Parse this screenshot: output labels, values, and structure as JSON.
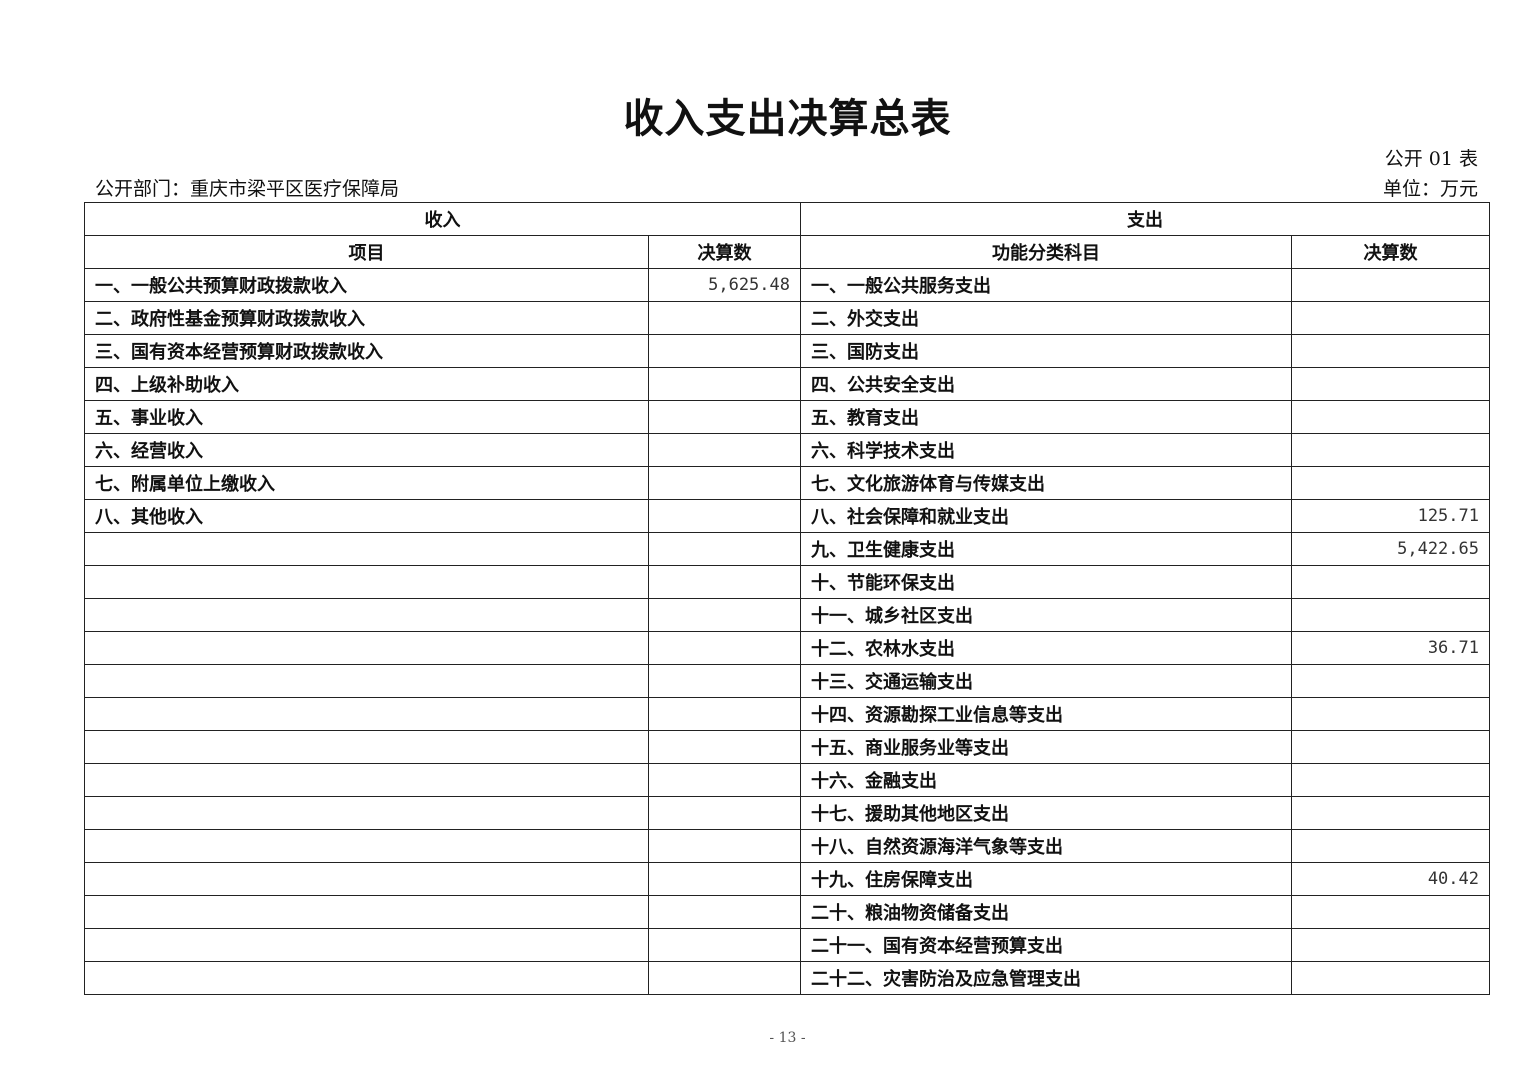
{
  "title": "收入支出决算总表",
  "form_no": "公开 01 表",
  "department": "公开部门：重庆市梁平区医疗保障局",
  "unit": "单位：万元",
  "headers": {
    "income": "收入",
    "expense": "支出",
    "income_item": "项目",
    "income_amount": "决算数",
    "expense_item": "功能分类科目",
    "expense_amount": "决算数"
  },
  "rows": [
    {
      "income_item": "一、一般公共预算财政拨款收入",
      "income_amount": "5,625.48",
      "expense_item": "一、一般公共服务支出",
      "expense_amount": ""
    },
    {
      "income_item": "二、政府性基金预算财政拨款收入",
      "income_amount": "",
      "expense_item": "二、外交支出",
      "expense_amount": ""
    },
    {
      "income_item": "三、国有资本经营预算财政拨款收入",
      "income_amount": "",
      "expense_item": "三、国防支出",
      "expense_amount": ""
    },
    {
      "income_item": "四、上级补助收入",
      "income_amount": "",
      "expense_item": "四、公共安全支出",
      "expense_amount": ""
    },
    {
      "income_item": "五、事业收入",
      "income_amount": "",
      "expense_item": "五、教育支出",
      "expense_amount": ""
    },
    {
      "income_item": "六、经营收入",
      "income_amount": "",
      "expense_item": "六、科学技术支出",
      "expense_amount": ""
    },
    {
      "income_item": "七、附属单位上缴收入",
      "income_amount": "",
      "expense_item": "七、文化旅游体育与传媒支出",
      "expense_amount": ""
    },
    {
      "income_item": "八、其他收入",
      "income_amount": "",
      "expense_item": "八、社会保障和就业支出",
      "expense_amount": "125.71"
    },
    {
      "income_item": "",
      "income_amount": "",
      "expense_item": "九、卫生健康支出",
      "expense_amount": "5,422.65"
    },
    {
      "income_item": "",
      "income_amount": "",
      "expense_item": "十、节能环保支出",
      "expense_amount": ""
    },
    {
      "income_item": "",
      "income_amount": "",
      "expense_item": "十一、城乡社区支出",
      "expense_amount": ""
    },
    {
      "income_item": "",
      "income_amount": "",
      "expense_item": "十二、农林水支出",
      "expense_amount": "36.71"
    },
    {
      "income_item": "",
      "income_amount": "",
      "expense_item": "十三、交通运输支出",
      "expense_amount": ""
    },
    {
      "income_item": "",
      "income_amount": "",
      "expense_item": "十四、资源勘探工业信息等支出",
      "expense_amount": ""
    },
    {
      "income_item": "",
      "income_amount": "",
      "expense_item": "十五、商业服务业等支出",
      "expense_amount": ""
    },
    {
      "income_item": "",
      "income_amount": "",
      "expense_item": "十六、金融支出",
      "expense_amount": ""
    },
    {
      "income_item": "",
      "income_amount": "",
      "expense_item": "十七、援助其他地区支出",
      "expense_amount": ""
    },
    {
      "income_item": "",
      "income_amount": "",
      "expense_item": "十八、自然资源海洋气象等支出",
      "expense_amount": ""
    },
    {
      "income_item": "",
      "income_amount": "",
      "expense_item": "十九、住房保障支出",
      "expense_amount": "40.42"
    },
    {
      "income_item": "",
      "income_amount": "",
      "expense_item": "二十、粮油物资储备支出",
      "expense_amount": ""
    },
    {
      "income_item": "",
      "income_amount": "",
      "expense_item": "二十一、国有资本经营预算支出",
      "expense_amount": ""
    },
    {
      "income_item": "",
      "income_amount": "",
      "expense_item": "二十二、灾害防治及应急管理支出",
      "expense_amount": ""
    }
  ],
  "page_number": "- 13 -"
}
